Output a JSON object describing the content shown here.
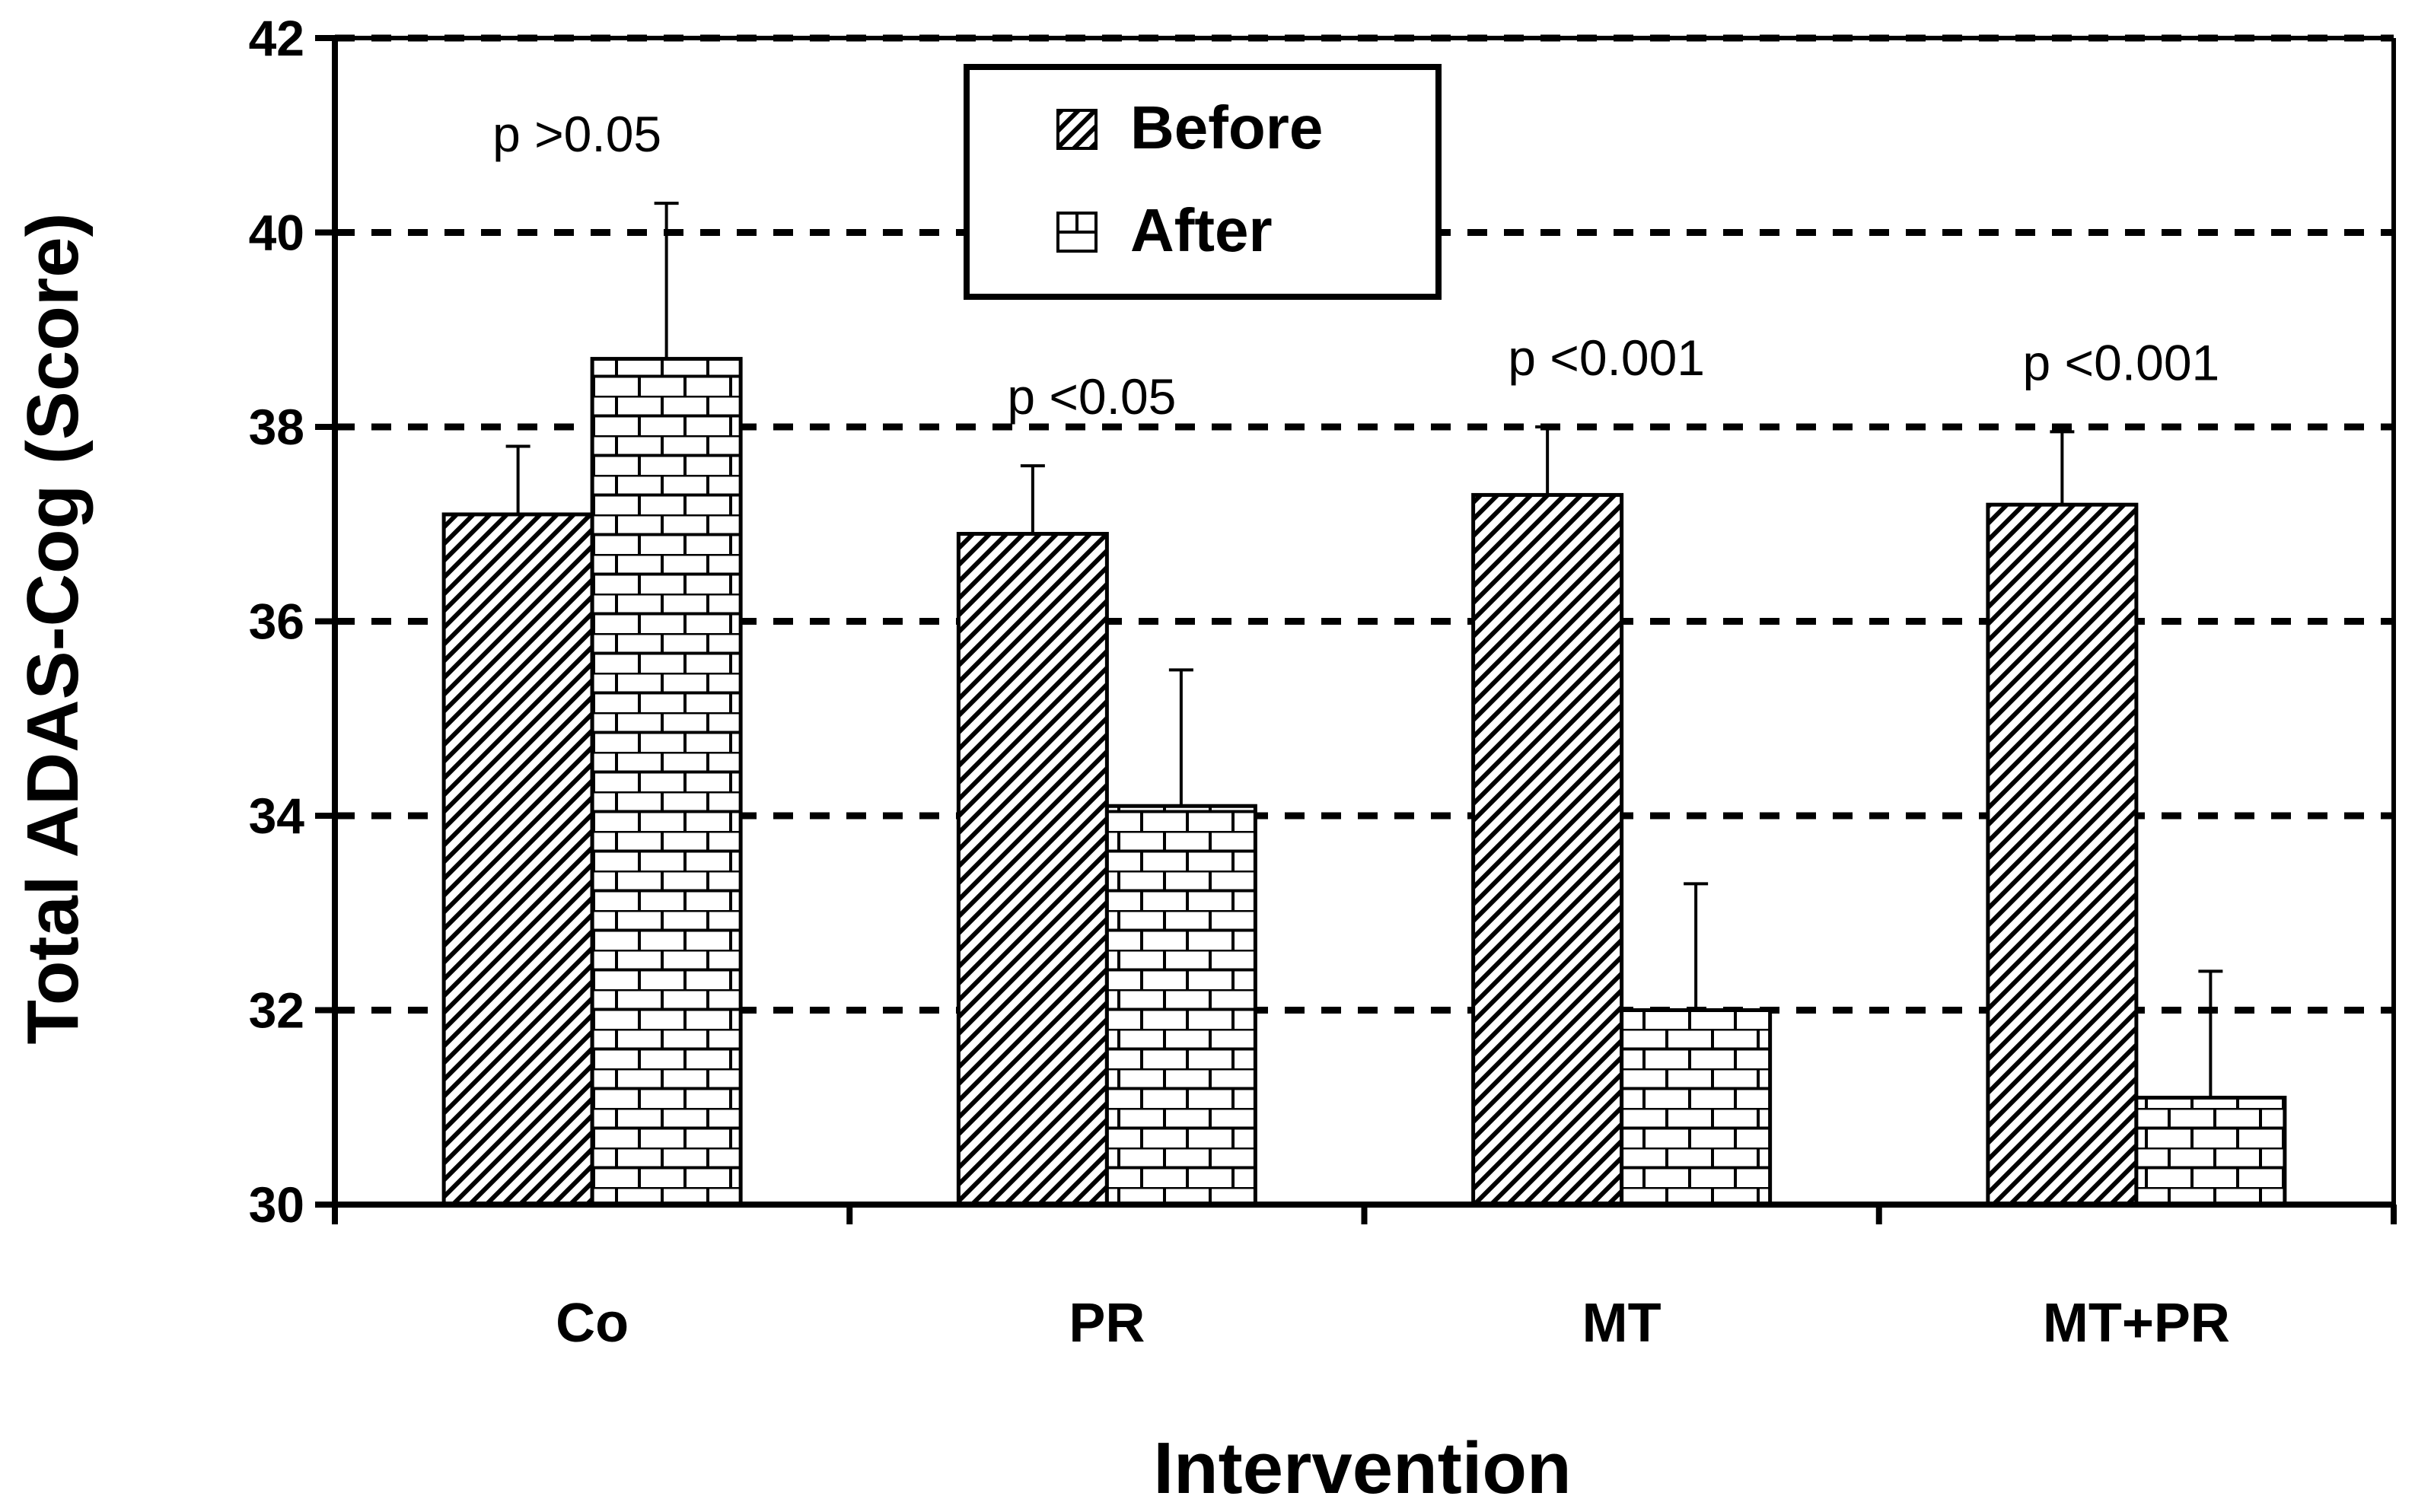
{
  "chart_data": {
    "type": "bar",
    "title": "",
    "xlabel": "Intervention",
    "ylabel": "Total ADAS-Cog (Score)",
    "ylim": [
      30,
      42
    ],
    "yticks": [
      30,
      32,
      34,
      36,
      38,
      40,
      42
    ],
    "grid": true,
    "legend_position": "top-center",
    "categories": [
      "Co",
      "PR",
      "MT",
      "MT+PR"
    ],
    "series": [
      {
        "name": "Before",
        "values": [
          37.1,
          36.9,
          37.3,
          37.2
        ],
        "error": [
          0.7,
          0.7,
          0.7,
          0.75
        ]
      },
      {
        "name": "After",
        "values": [
          38.7,
          34.1,
          32.0,
          31.1
        ],
        "error": [
          1.6,
          1.4,
          1.3,
          1.3
        ]
      }
    ],
    "annotations": [
      "p >0.05",
      "p <0.05",
      "p <0.001",
      "p <0.001"
    ]
  }
}
